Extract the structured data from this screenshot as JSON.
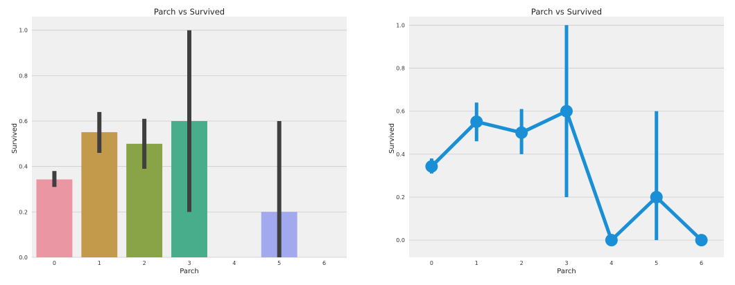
{
  "chart_data": [
    {
      "type": "bar",
      "title": "Parch vs Survived",
      "xlabel": "Parch",
      "ylabel": "Survived",
      "categories": [
        "0",
        "1",
        "2",
        "3",
        "4",
        "5",
        "6"
      ],
      "values": [
        0.343,
        0.551,
        0.5,
        0.6,
        0.0,
        0.2,
        0.0
      ],
      "ci_low": [
        0.31,
        0.46,
        0.39,
        0.2,
        0.0,
        0.0,
        0.0
      ],
      "ci_high": [
        0.38,
        0.64,
        0.61,
        1.0,
        0.0,
        0.6,
        0.0
      ],
      "colors": [
        "#ea96a3",
        "#c39a4b",
        "#88a447",
        "#47ad8b",
        "#4fa6c2",
        "#a3a9ee",
        "#e494d6"
      ],
      "yticks": [
        "0.0",
        "0.2",
        "0.4",
        "0.6",
        "0.8",
        "1.0"
      ],
      "ylim": [
        0,
        1.06
      ],
      "grid": true
    },
    {
      "type": "line",
      "title": "Parch vs Survived",
      "xlabel": "Parch",
      "ylabel": "Survived",
      "categories": [
        "0",
        "1",
        "2",
        "3",
        "4",
        "5",
        "6"
      ],
      "values": [
        0.343,
        0.551,
        0.5,
        0.6,
        0.0,
        0.2,
        0.0
      ],
      "ci_low": [
        0.31,
        0.46,
        0.4,
        0.2,
        0.0,
        0.0,
        0.0
      ],
      "ci_high": [
        0.38,
        0.64,
        0.61,
        1.0,
        0.0,
        0.6,
        0.0
      ],
      "color": "#1a8fd6",
      "yticks": [
        "0.0",
        "0.2",
        "0.4",
        "0.6",
        "0.8",
        "1.0"
      ],
      "ylim": [
        -0.08,
        1.04
      ],
      "grid": true
    }
  ]
}
